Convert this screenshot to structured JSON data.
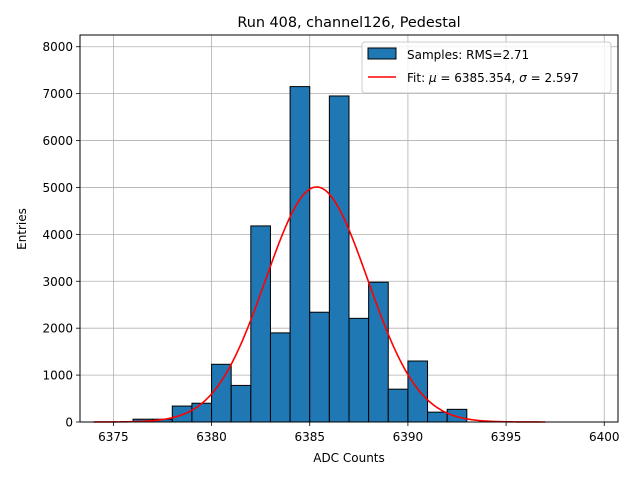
{
  "chart_data": {
    "type": "bar",
    "title": "Run 408, channel126, Pedestal",
    "xlabel": "ADC Counts",
    "ylabel": "Entries",
    "xlim": [
      6373.3,
      6400.7
    ],
    "ylim": [
      0,
      8250
    ],
    "xticks": [
      6375,
      6380,
      6385,
      6390,
      6395,
      6400
    ],
    "yticks": [
      0,
      1000,
      2000,
      3000,
      4000,
      5000,
      6000,
      7000,
      8000
    ],
    "grid": true,
    "legend_position": "top-right",
    "histogram": {
      "name": "Samples: RMS=2.71",
      "color": "#1f77b4",
      "edge_color": "#000000",
      "bin_edges": [
        6376,
        6377,
        6378,
        6379,
        6380,
        6381,
        6382,
        6383,
        6384,
        6385,
        6386,
        6387,
        6388,
        6389,
        6390,
        6391,
        6392,
        6393
      ],
      "counts": [
        60,
        60,
        340,
        400,
        1230,
        780,
        4180,
        1900,
        7150,
        2340,
        6950,
        2210,
        2980,
        700,
        1300,
        210,
        270
      ]
    },
    "fit": {
      "name_prefix": "Fit: ",
      "mu_symbol": "μ",
      "sigma_symbol": "σ",
      "mu_value": "6385.354",
      "sigma_value": "2.597",
      "color": "#ff0000",
      "x_range": [
        6374,
        6397
      ],
      "mu": 6385.354,
      "sigma": 2.597,
      "amplitude": 5010
    }
  }
}
